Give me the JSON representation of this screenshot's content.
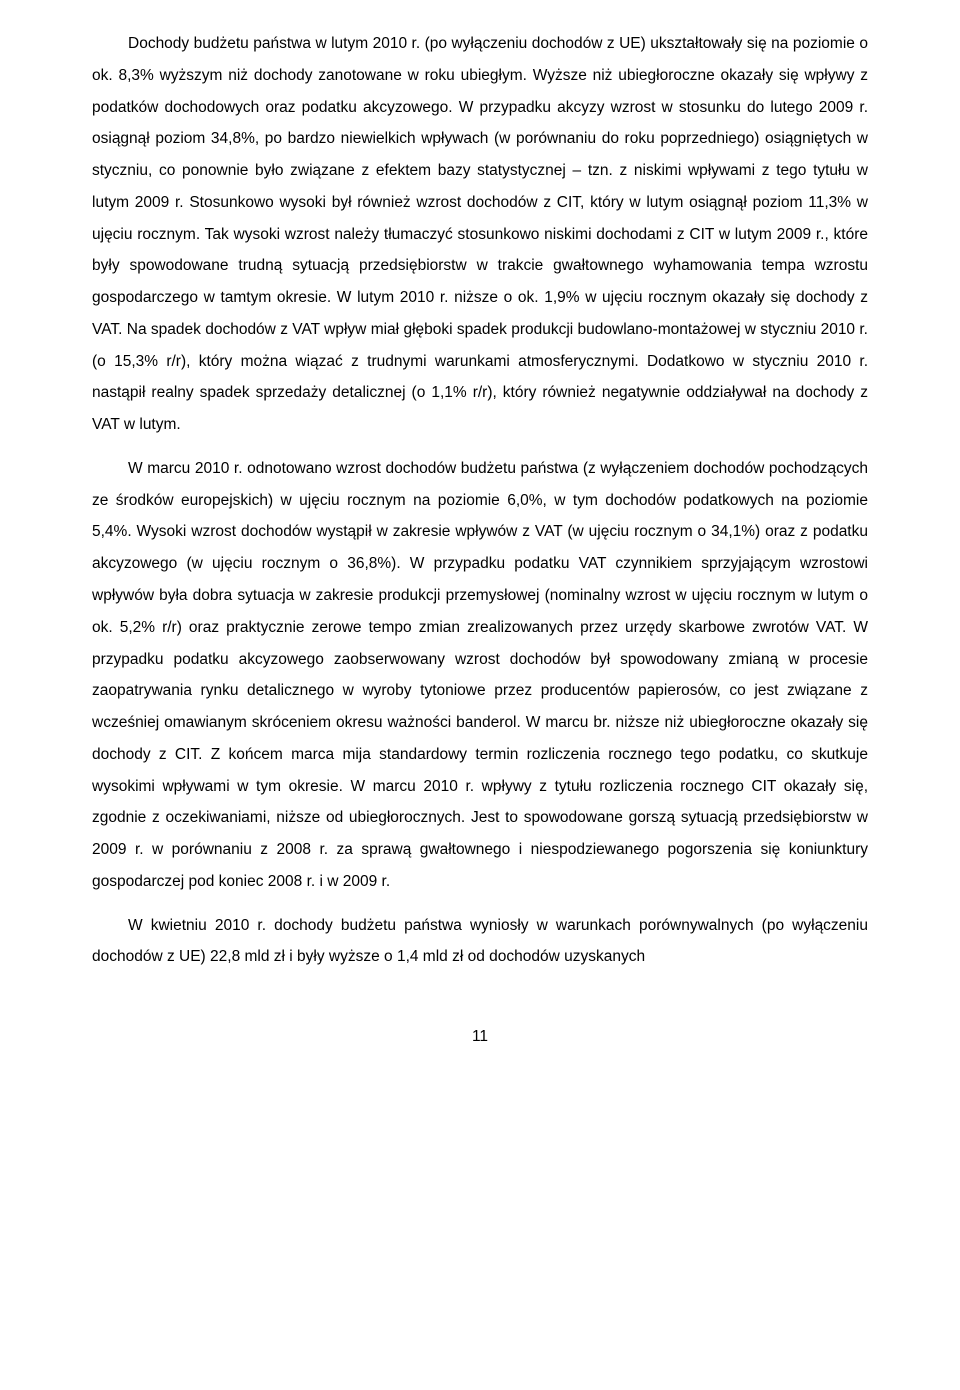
{
  "paragraphs": {
    "p1": "Dochody budżetu państwa w lutym 2010 r. (po wyłączeniu dochodów z UE) ukształtowały się na poziomie o ok. 8,3% wyższym niż dochody zanotowane w roku ubiegłym. Wyższe niż ubiegłoroczne okazały się wpływy z podatków dochodowych oraz podatku akcyzowego. W przypadku akcyzy wzrost w stosunku do lutego 2009 r. osiągnął poziom 34,8%, po bardzo niewielkich wpływach (w porównaniu do roku poprzedniego) osiągniętych w styczniu, co ponownie było związane z efektem bazy statystycznej – tzn. z niskimi wpływami z tego tytułu w lutym 2009 r. Stosunkowo wysoki był również wzrost dochodów z CIT, który w lutym osiągnął poziom 11,3% w ujęciu rocznym. Tak wysoki wzrost należy tłumaczyć stosunkowo niskimi dochodami z CIT w lutym 2009 r., które były spowodowane trudną sytuacją przedsiębiorstw w trakcie gwałtownego wyhamowania tempa wzrostu gospodarczego w tamtym okresie. W lutym 2010 r. niższe o ok. 1,9% w ujęciu rocznym okazały się dochody z VAT. Na spadek dochodów z VAT wpływ miał głęboki spadek produkcji budowlano-montażowej w styczniu 2010 r. (o 15,3% r/r), który można wiązać z trudnymi warunkami atmosferycznymi. Dodatkowo w styczniu 2010 r. nastąpił realny spadek sprzedaży detalicznej (o 1,1% r/r), który również negatywnie oddziaływał na dochody z VAT w lutym.",
    "p2": "W marcu 2010 r. odnotowano wzrost dochodów budżetu państwa (z wyłączeniem dochodów pochodzących ze środków europejskich) w ujęciu rocznym na poziomie 6,0%, w tym dochodów podatkowych na poziomie 5,4%. Wysoki wzrost dochodów wystąpił w zakresie wpływów z VAT (w ujęciu rocznym o 34,1%) oraz z podatku akcyzowego (w ujęciu rocznym o 36,8%). W przypadku podatku VAT czynnikiem sprzyjającym wzrostowi wpływów była dobra sytuacja w zakresie produkcji przemysłowej (nominalny wzrost w ujęciu rocznym w lutym o ok. 5,2% r/r) oraz praktycznie zerowe tempo zmian zrealizowanych przez urzędy skarbowe zwrotów VAT. W przypadku podatku akcyzowego zaobserwowany wzrost dochodów był spowodowany zmianą w procesie zaopatrywania rynku detalicznego w wyroby tytoniowe przez producentów papierosów, co jest związane z wcześniej omawianym skróceniem okresu ważności banderol. W marcu br. niższe niż ubiegłoroczne okazały się dochody z CIT. Z końcem marca mija standardowy termin rozliczenia rocznego tego podatku, co skutkuje wysokimi wpływami w tym okresie. W marcu 2010 r. wpływy z tytułu rozliczenia rocznego CIT okazały się, zgodnie z oczekiwaniami, niższe od ubiegłorocznych. Jest to spowodowane gorszą sytuacją przedsiębiorstw w 2009 r. w porównaniu z 2008 r. za sprawą gwałtownego i niespodziewanego pogorszenia się koniunktury gospodarczej pod koniec 2008 r. i w 2009 r.",
    "p3": "W kwietniu 2010 r. dochody budżetu państwa wyniosły w warunkach porównywalnych (po wyłączeniu dochodów z UE) 22,8 mld zł i były wyższe o 1,4 mld zł od dochodów uzyskanych"
  },
  "page_number": "11"
}
